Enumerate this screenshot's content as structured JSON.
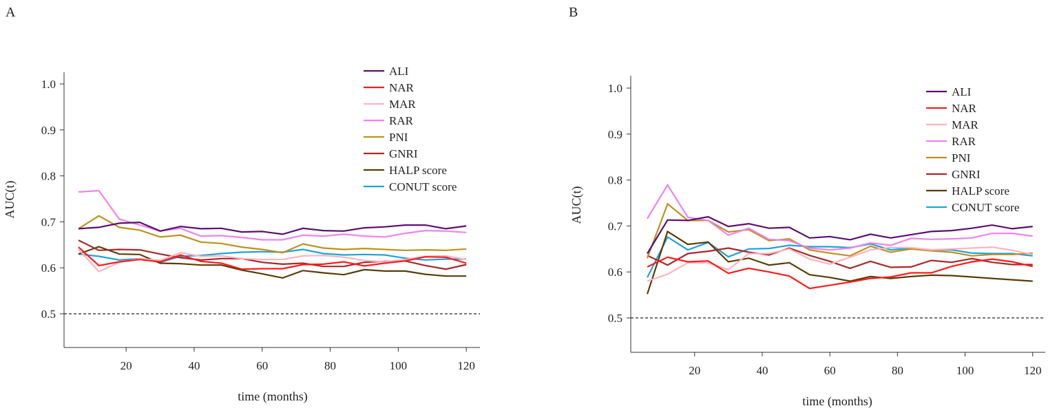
{
  "colors": {
    "ALI": "#5c0d70",
    "NAR": "#ff1a1a",
    "MAR": "#ffb3bf",
    "RAR": "#ee82ee",
    "PNI": "#c08f1c",
    "GNRI": "#a82828",
    "HALP score": "#5a3c05",
    "CONUT score": "#1ba3dc"
  },
  "chart_data": [
    {
      "panel": "A",
      "type": "line",
      "xlabel": "time (months)",
      "ylabel": "AUC(t)",
      "ylim": [
        0.5,
        1.0
      ],
      "yticks": [
        "0.5",
        "0.6",
        "0.7",
        "0.8",
        "0.9",
        "1.0"
      ],
      "xticks": [
        "20",
        "40",
        "60",
        "80",
        "100",
        "120"
      ],
      "reference_line": 0.5,
      "legend_position": "top-right",
      "x": [
        6,
        12,
        18,
        24,
        30,
        36,
        42,
        48,
        54,
        60,
        66,
        72,
        78,
        84,
        90,
        96,
        102,
        108,
        114,
        120
      ],
      "series": [
        {
          "name": "ALI",
          "values": [
            0.685,
            0.688,
            0.697,
            0.699,
            0.68,
            0.69,
            0.685,
            0.686,
            0.678,
            0.679,
            0.673,
            0.686,
            0.681,
            0.68,
            0.687,
            0.689,
            0.693,
            0.693,
            0.685,
            0.691
          ]
        },
        {
          "name": "NAR",
          "values": [
            0.645,
            0.605,
            0.613,
            0.618,
            0.613,
            0.628,
            0.614,
            0.61,
            0.597,
            0.598,
            0.598,
            0.607,
            0.608,
            0.613,
            0.604,
            0.61,
            0.615,
            0.624,
            0.623,
            0.61
          ]
        },
        {
          "name": "MAR",
          "values": [
            0.64,
            0.592,
            0.612,
            0.62,
            0.616,
            0.633,
            0.625,
            0.626,
            0.62,
            0.618,
            0.618,
            0.626,
            0.627,
            0.623,
            0.616,
            0.613,
            0.618,
            0.625,
            0.626,
            0.618
          ]
        },
        {
          "name": "RAR",
          "values": [
            0.765,
            0.768,
            0.706,
            0.693,
            0.68,
            0.686,
            0.669,
            0.67,
            0.666,
            0.661,
            0.661,
            0.671,
            0.669,
            0.673,
            0.669,
            0.667,
            0.675,
            0.681,
            0.68,
            0.677
          ]
        },
        {
          "name": "PNI",
          "values": [
            0.685,
            0.713,
            0.688,
            0.682,
            0.667,
            0.671,
            0.656,
            0.653,
            0.645,
            0.64,
            0.633,
            0.652,
            0.643,
            0.64,
            0.642,
            0.64,
            0.638,
            0.639,
            0.638,
            0.641
          ]
        },
        {
          "name": "GNRI",
          "values": [
            0.66,
            0.638,
            0.64,
            0.639,
            0.63,
            0.622,
            0.617,
            0.62,
            0.62,
            0.612,
            0.608,
            0.61,
            0.603,
            0.603,
            0.612,
            0.614,
            0.615,
            0.605,
            0.597,
            0.607
          ]
        },
        {
          "name": "HALP score",
          "values": [
            0.63,
            0.646,
            0.63,
            0.629,
            0.61,
            0.609,
            0.606,
            0.606,
            0.595,
            0.587,
            0.578,
            0.594,
            0.589,
            0.585,
            0.596,
            0.593,
            0.593,
            0.586,
            0.582,
            0.582
          ]
        },
        {
          "name": "CONUT score",
          "values": [
            0.63,
            0.625,
            0.617,
            0.62,
            0.612,
            0.625,
            0.627,
            0.631,
            0.634,
            0.635,
            0.634,
            0.64,
            0.631,
            0.628,
            0.629,
            0.628,
            0.621,
            0.617,
            0.619,
            0.619
          ]
        }
      ]
    },
    {
      "panel": "B",
      "type": "line",
      "xlabel": "time (months)",
      "ylabel": "AUC(t)",
      "ylim": [
        0.5,
        1.0
      ],
      "yticks": [
        "0.5",
        "0.6",
        "0.7",
        "0.8",
        "0.9",
        "1.0"
      ],
      "xticks": [
        "20",
        "40",
        "60",
        "80",
        "100",
        "120"
      ],
      "reference_line": 0.5,
      "legend_position": "top-right",
      "x": [
        6,
        12,
        18,
        24,
        30,
        36,
        42,
        48,
        54,
        60,
        66,
        72,
        78,
        84,
        90,
        96,
        102,
        108,
        114,
        120
      ],
      "series": [
        {
          "name": "ALI",
          "values": [
            0.64,
            0.713,
            0.712,
            0.72,
            0.699,
            0.705,
            0.695,
            0.697,
            0.674,
            0.677,
            0.67,
            0.682,
            0.674,
            0.681,
            0.688,
            0.69,
            0.695,
            0.702,
            0.694,
            0.699
          ]
        },
        {
          "name": "NAR",
          "values": [
            0.611,
            0.632,
            0.622,
            0.624,
            0.597,
            0.608,
            0.6,
            0.591,
            0.564,
            0.571,
            0.578,
            0.586,
            0.589,
            0.598,
            0.598,
            0.612,
            0.622,
            0.628,
            0.622,
            0.612
          ]
        },
        {
          "name": "MAR",
          "values": [
            0.58,
            0.595,
            0.62,
            0.62,
            0.605,
            0.64,
            0.64,
            0.65,
            0.628,
            0.617,
            0.632,
            0.648,
            0.653,
            0.653,
            0.648,
            0.65,
            0.652,
            0.654,
            0.647,
            0.638
          ]
        },
        {
          "name": "RAR",
          "values": [
            0.716,
            0.789,
            0.719,
            0.712,
            0.68,
            0.695,
            0.671,
            0.668,
            0.652,
            0.648,
            0.652,
            0.663,
            0.658,
            0.673,
            0.671,
            0.672,
            0.674,
            0.684,
            0.684,
            0.678
          ]
        },
        {
          "name": "PNI",
          "values": [
            0.63,
            0.748,
            0.712,
            0.712,
            0.687,
            0.692,
            0.668,
            0.672,
            0.648,
            0.641,
            0.635,
            0.656,
            0.643,
            0.65,
            0.646,
            0.643,
            0.635,
            0.638,
            0.638,
            0.641
          ]
        },
        {
          "name": "GNRI",
          "values": [
            0.636,
            0.615,
            0.64,
            0.645,
            0.652,
            0.643,
            0.637,
            0.652,
            0.636,
            0.623,
            0.608,
            0.623,
            0.61,
            0.611,
            0.625,
            0.621,
            0.629,
            0.621,
            0.616,
            0.616
          ]
        },
        {
          "name": "HALP score",
          "values": [
            0.552,
            0.688,
            0.66,
            0.665,
            0.622,
            0.63,
            0.615,
            0.62,
            0.594,
            0.588,
            0.58,
            0.59,
            0.586,
            0.59,
            0.593,
            0.592,
            0.589,
            0.586,
            0.583,
            0.58
          ]
        },
        {
          "name": "CONUT score",
          "values": [
            0.588,
            0.676,
            0.648,
            0.664,
            0.633,
            0.65,
            0.651,
            0.658,
            0.655,
            0.655,
            0.653,
            0.661,
            0.648,
            0.652,
            0.648,
            0.648,
            0.641,
            0.64,
            0.64,
            0.635
          ]
        }
      ]
    }
  ]
}
